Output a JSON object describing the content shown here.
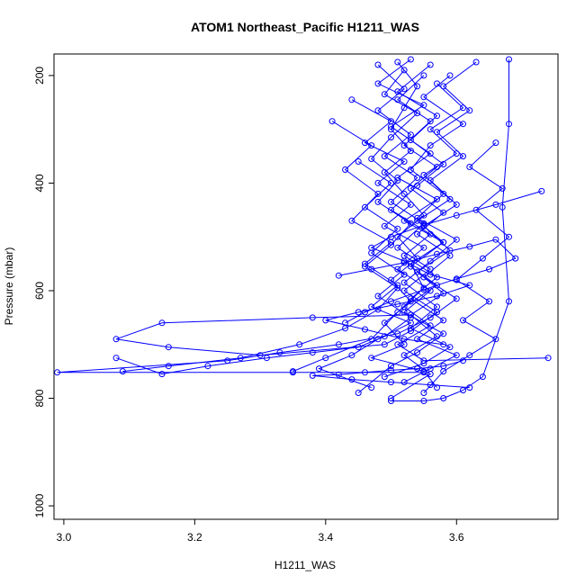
{
  "chart_data": {
    "type": "line",
    "title": "ATOM1 Northeast_Pacific H1211_WAS",
    "xlabel": "H1211_WAS",
    "ylabel": "Pressure (mbar)",
    "xlim": [
      2.985,
      3.755
    ],
    "ylim": [
      1025,
      160
    ],
    "y_reversed": true,
    "x_ticks": [
      3.0,
      3.2,
      3.4,
      3.6
    ],
    "x_tick_labels": [
      "3.0",
      "3.2",
      "3.4",
      "3.6"
    ],
    "y_ticks": [
      200,
      400,
      600,
      800,
      1000
    ],
    "y_tick_labels": [
      "200",
      "400",
      "600",
      "800",
      "1000"
    ],
    "grid": false,
    "legend": "none",
    "colors": {
      "series": "#0000ff",
      "axis": "#000000",
      "background": "#ffffff"
    },
    "marker": "open-circle",
    "series": [
      {
        "points": [
          [
            3.51,
            175
          ],
          [
            3.54,
            220
          ],
          [
            3.52,
            260
          ],
          [
            3.5,
            300
          ],
          [
            3.53,
            340
          ],
          [
            3.49,
            380
          ],
          [
            3.52,
            420
          ],
          [
            3.55,
            460
          ],
          [
            3.51,
            500
          ],
          [
            3.54,
            540
          ],
          [
            3.5,
            580
          ],
          [
            3.53,
            620
          ],
          [
            3.49,
            660
          ],
          [
            3.52,
            700
          ],
          [
            3.47,
            725
          ],
          [
            3.55,
            750
          ],
          [
            3.57,
            780
          ]
        ]
      },
      {
        "points": [
          [
            3.56,
            180
          ],
          [
            3.51,
            230
          ],
          [
            3.57,
            275
          ],
          [
            3.53,
            320
          ],
          [
            3.58,
            365
          ],
          [
            3.54,
            405
          ],
          [
            3.5,
            450
          ],
          [
            3.56,
            495
          ],
          [
            3.52,
            535
          ],
          [
            3.57,
            575
          ],
          [
            3.53,
            615
          ],
          [
            3.58,
            655
          ],
          [
            3.54,
            690
          ],
          [
            3.6,
            720
          ],
          [
            3.56,
            745
          ],
          [
            3.52,
            770
          ]
        ]
      },
      {
        "points": [
          [
            3.53,
            170
          ],
          [
            3.48,
            215
          ],
          [
            3.55,
            255
          ],
          [
            3.5,
            295
          ],
          [
            3.56,
            345
          ],
          [
            3.51,
            390
          ],
          [
            3.57,
            430
          ],
          [
            3.52,
            470
          ],
          [
            3.58,
            510
          ],
          [
            3.53,
            550
          ],
          [
            3.55,
            595
          ],
          [
            3.51,
            640
          ],
          [
            3.47,
            690
          ],
          [
            3.4,
            725
          ],
          [
            3.35,
            750
          ]
        ]
      },
      {
        "points": [
          [
            3.59,
            200
          ],
          [
            3.55,
            240
          ],
          [
            3.61,
            290
          ],
          [
            3.56,
            330
          ],
          [
            3.53,
            375
          ],
          [
            3.58,
            420
          ],
          [
            3.54,
            465
          ],
          [
            3.6,
            505
          ],
          [
            3.56,
            545
          ],
          [
            3.52,
            585
          ],
          [
            3.57,
            630
          ],
          [
            3.53,
            670
          ],
          [
            3.59,
            705
          ],
          [
            3.55,
            735
          ],
          [
            3.49,
            760
          ]
        ]
      },
      {
        "points": [
          [
            3.44,
            245
          ],
          [
            3.5,
            285
          ],
          [
            3.46,
            325
          ],
          [
            3.52,
            360
          ],
          [
            3.48,
            400
          ],
          [
            3.53,
            440
          ],
          [
            3.49,
            480
          ],
          [
            3.55,
            520
          ],
          [
            3.51,
            560
          ],
          [
            3.56,
            600
          ],
          [
            3.52,
            640
          ],
          [
            3.58,
            680
          ],
          [
            3.54,
            715
          ],
          [
            3.5,
            740
          ],
          [
            3.45,
            790
          ]
        ]
      },
      {
        "points": [
          [
            3.63,
            175
          ],
          [
            3.58,
            220
          ],
          [
            3.62,
            265
          ],
          [
            3.57,
            305
          ],
          [
            3.61,
            350
          ],
          [
            3.56,
            395
          ],
          [
            3.6,
            440
          ],
          [
            3.55,
            480
          ],
          [
            3.59,
            525
          ],
          [
            3.54,
            565
          ],
          [
            3.58,
            605
          ],
          [
            3.53,
            645
          ],
          [
            3.57,
            685
          ],
          [
            3.52,
            720
          ],
          [
            3.56,
            755
          ],
          [
            3.5,
            800
          ]
        ]
      },
      {
        "points": [
          [
            3.41,
            285
          ],
          [
            3.47,
            330
          ],
          [
            3.43,
            375
          ],
          [
            3.48,
            420
          ],
          [
            3.44,
            470
          ],
          [
            3.5,
            510
          ],
          [
            3.46,
            550
          ],
          [
            3.51,
            590
          ],
          [
            3.47,
            630
          ],
          [
            3.53,
            660
          ],
          [
            3.48,
            690
          ],
          [
            3.44,
            720
          ],
          [
            3.39,
            745
          ],
          [
            3.47,
            780
          ]
        ]
      },
      {
        "points": [
          [
            3.66,
            325
          ],
          [
            3.62,
            370
          ],
          [
            3.67,
            410
          ],
          [
            3.63,
            450
          ],
          [
            3.68,
            500
          ],
          [
            3.64,
            540
          ],
          [
            3.6,
            580
          ],
          [
            3.65,
            620
          ],
          [
            3.61,
            655
          ],
          [
            3.66,
            690
          ],
          [
            3.62,
            720
          ],
          [
            3.58,
            750
          ],
          [
            3.55,
            790
          ]
        ]
      },
      {
        "points": [
          [
            3.52,
            190
          ],
          [
            3.49,
            235
          ],
          [
            3.54,
            270
          ],
          [
            3.5,
            315
          ],
          [
            3.47,
            355
          ],
          [
            3.51,
            395
          ],
          [
            3.48,
            435
          ],
          [
            3.53,
            475
          ],
          [
            3.5,
            515
          ],
          [
            3.46,
            555
          ],
          [
            3.51,
            595
          ],
          [
            3.48,
            635
          ],
          [
            3.43,
            670
          ],
          [
            3.36,
            700
          ],
          [
            3.27,
            725
          ],
          [
            3.16,
            740
          ],
          [
            3.09,
            750
          ]
        ]
      },
      {
        "points": [
          [
            3.45,
            360
          ],
          [
            3.5,
            400
          ],
          [
            3.46,
            445
          ],
          [
            3.51,
            485
          ],
          [
            3.47,
            530
          ],
          [
            3.52,
            570
          ],
          [
            3.48,
            610
          ],
          [
            3.53,
            650
          ],
          [
            3.49,
            685
          ],
          [
            3.45,
            705
          ],
          [
            3.38,
            715
          ],
          [
            3.31,
            725
          ],
          [
            3.22,
            740
          ],
          [
            3.15,
            755
          ],
          [
            3.08,
            725
          ]
        ]
      },
      {
        "points": [
          [
            3.57,
            215
          ],
          [
            3.61,
            260
          ],
          [
            3.56,
            300
          ],
          [
            3.6,
            345
          ],
          [
            3.55,
            385
          ],
          [
            3.59,
            430
          ],
          [
            3.54,
            470
          ],
          [
            3.58,
            510
          ],
          [
            3.53,
            555
          ],
          [
            3.57,
            590
          ],
          [
            3.52,
            630
          ],
          [
            3.56,
            665
          ],
          [
            3.51,
            700
          ],
          [
            3.55,
            730
          ],
          [
            3.74,
            725
          ]
        ]
      },
      {
        "points": [
          [
            3.48,
            180
          ],
          [
            3.52,
            225
          ],
          [
            3.48,
            265
          ],
          [
            3.53,
            310
          ],
          [
            3.49,
            350
          ],
          [
            3.54,
            390
          ],
          [
            3.5,
            435
          ],
          [
            3.55,
            475
          ],
          [
            3.51,
            520
          ],
          [
            3.56,
            560
          ],
          [
            3.52,
            600
          ],
          [
            3.57,
            640
          ],
          [
            3.53,
            675
          ],
          [
            3.49,
            700
          ],
          [
            3.3,
            720
          ],
          [
            3.16,
            705
          ],
          [
            3.08,
            690
          ],
          [
            3.15,
            660
          ],
          [
            3.38,
            650
          ],
          [
            3.53,
            645
          ]
        ]
      },
      {
        "points": [
          [
            3.68,
            170
          ],
          [
            3.68,
            290
          ],
          [
            3.67,
            445
          ],
          [
            3.68,
            620
          ],
          [
            3.64,
            760
          ],
          [
            3.61,
            785
          ],
          [
            3.58,
            800
          ],
          [
            3.55,
            805
          ],
          [
            3.5,
            805
          ]
        ]
      },
      {
        "points": [
          [
            3.55,
            200
          ],
          [
            3.51,
            245
          ],
          [
            3.56,
            285
          ],
          [
            3.52,
            330
          ],
          [
            3.57,
            370
          ],
          [
            3.53,
            410
          ],
          [
            3.58,
            455
          ],
          [
            3.54,
            495
          ],
          [
            3.59,
            535
          ],
          [
            3.55,
            575
          ],
          [
            3.6,
            615
          ],
          [
            3.56,
            650
          ],
          [
            3.51,
            680
          ],
          [
            3.42,
            700
          ],
          [
            3.33,
            715
          ],
          [
            3.25,
            730
          ],
          [
            2.99,
            752
          ],
          [
            3.35,
            752
          ],
          [
            3.55,
            752
          ]
        ]
      },
      {
        "points": [
          [
            3.73,
            415
          ],
          [
            3.66,
            440
          ],
          [
            3.6,
            460
          ],
          [
            3.55,
            478
          ],
          [
            3.5,
            500
          ],
          [
            3.47,
            520
          ],
          [
            3.52,
            545
          ],
          [
            3.56,
            570
          ],
          [
            3.62,
            590
          ],
          [
            3.57,
            610
          ],
          [
            3.51,
            625
          ],
          [
            3.45,
            640
          ],
          [
            3.4,
            655
          ],
          [
            3.46,
            672
          ],
          [
            3.52,
            690
          ],
          [
            3.58,
            700
          ]
        ]
      },
      {
        "points": [
          [
            3.42,
            572
          ],
          [
            3.47,
            560
          ],
          [
            3.52,
            548
          ],
          [
            3.57,
            532
          ],
          [
            3.62,
            518
          ],
          [
            3.66,
            505
          ],
          [
            3.69,
            540
          ],
          [
            3.65,
            560
          ],
          [
            3.6,
            578
          ],
          [
            3.55,
            598
          ],
          [
            3.5,
            620
          ],
          [
            3.46,
            640
          ],
          [
            3.43,
            660
          ]
        ]
      },
      {
        "points": [
          [
            3.61,
            730
          ],
          [
            3.58,
            740
          ],
          [
            3.54,
            745
          ],
          [
            3.5,
            748
          ],
          [
            3.46,
            752
          ],
          [
            3.42,
            756
          ],
          [
            3.38,
            758
          ],
          [
            3.44,
            765
          ],
          [
            3.5,
            770
          ],
          [
            3.56,
            775
          ],
          [
            3.62,
            780
          ]
        ]
      }
    ]
  }
}
